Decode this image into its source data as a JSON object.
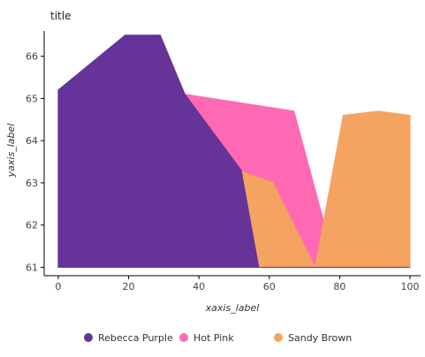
{
  "chart_data": {
    "type": "area",
    "title": "title",
    "xlabel": "xaxis_label",
    "ylabel": "yaxis_label",
    "xlim": [
      -4,
      103
    ],
    "ylim": [
      60.8,
      66.6
    ],
    "x_ticks": [
      0,
      20,
      40,
      60,
      80,
      100
    ],
    "y_ticks": [
      61,
      62,
      63,
      64,
      65,
      66
    ],
    "grid": false,
    "legend_position": "bottom",
    "series": [
      {
        "name": "Hot Pink",
        "color": "#ff69b4",
        "points": [
          [
            0,
            65.2
          ],
          [
            19,
            65.2
          ],
          [
            29,
            65.2
          ],
          [
            36,
            65.1
          ],
          [
            67,
            64.7
          ],
          [
            79,
            61.0
          ],
          [
            100,
            61.0
          ]
        ]
      },
      {
        "name": "Sandy Brown",
        "color": "#f4a460",
        "points": [
          [
            0,
            61.0
          ],
          [
            18,
            61.9
          ],
          [
            29,
            61.6
          ],
          [
            31,
            61.0
          ],
          [
            39,
            61.0
          ],
          [
            51,
            63.3
          ],
          [
            61,
            63.0
          ],
          [
            73,
            61.0
          ],
          [
            81,
            64.6
          ],
          [
            91,
            64.7
          ],
          [
            100,
            64.6
          ]
        ]
      },
      {
        "name": "Rebecca Purple",
        "color": "#663399",
        "points": [
          [
            0,
            65.2
          ],
          [
            19,
            66.5
          ],
          [
            29,
            66.5
          ],
          [
            36,
            65.1
          ],
          [
            52,
            63.3
          ],
          [
            57,
            61.0
          ],
          [
            100,
            61.0
          ]
        ]
      }
    ],
    "legend_order": [
      "Rebecca Purple",
      "Hot Pink",
      "Sandy Brown"
    ]
  }
}
